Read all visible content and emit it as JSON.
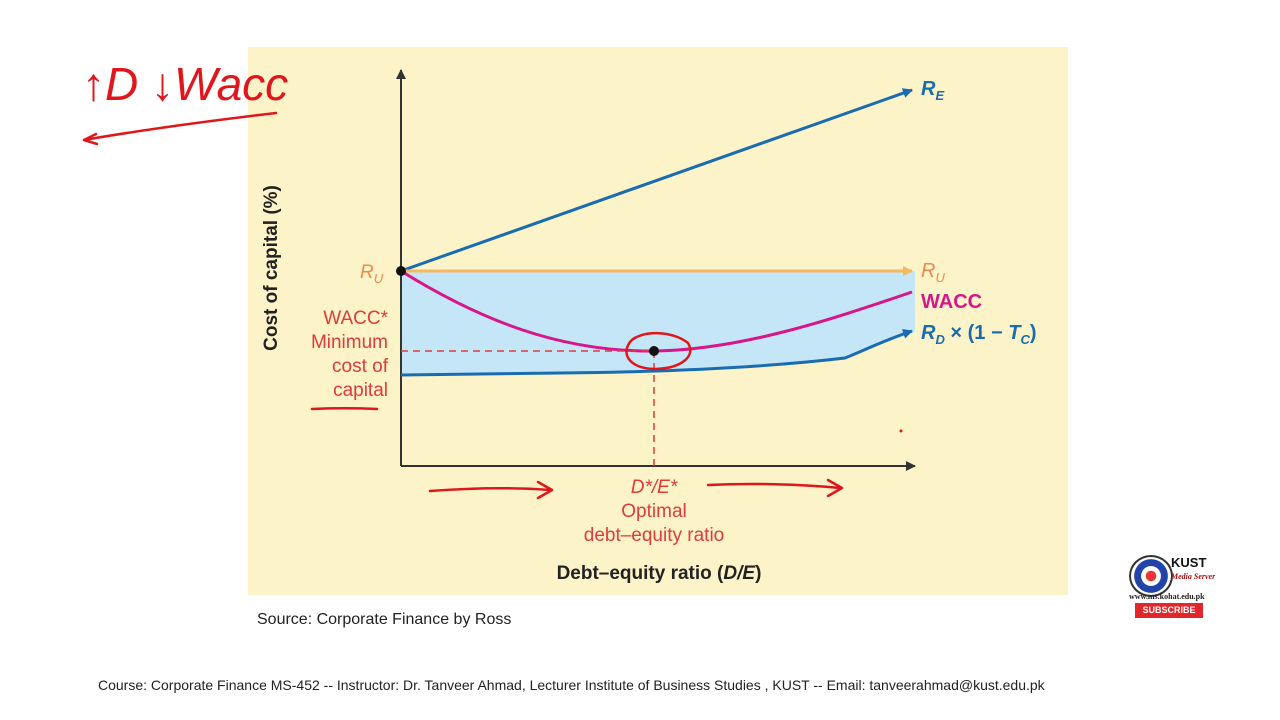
{
  "annotation": {
    "handwritten_note": "↑D ↓Wacc"
  },
  "diagram": {
    "y_axis_label": "Cost of capital (%)",
    "x_axis_label_prefix": "Debt–equity ratio (",
    "x_axis_label_var": "D/E",
    "x_axis_label_suffix": ")",
    "ru_left_main": "R",
    "ru_left_sub": "U",
    "lines": {
      "re": {
        "main": "R",
        "sub": "E",
        "color": "#1a6cb0"
      },
      "ru": {
        "main": "R",
        "sub": "U",
        "color": "#f4b860"
      },
      "wacc": {
        "label": "WACC",
        "color": "#d6168a"
      },
      "rd": {
        "main": "R",
        "sub": "D",
        "times": " × (1 − ",
        "tc_main": "T",
        "tc_sub": "C",
        "close": ")",
        "color": "#1a6cb0"
      }
    },
    "wacc_min_label": {
      "line1": "WACC*",
      "line2": "Minimum",
      "line3": "cost of",
      "line4": "capital"
    },
    "optimal_label": {
      "line1": "D*/E*",
      "line2": "Optimal",
      "line3": "debt–equity ratio"
    },
    "colors": {
      "panel_bg": "#fcf4c8",
      "shade": "#c5e6f7",
      "label_red": "#e03b3b",
      "axis": "#333333",
      "ink_red": "#e0161c"
    }
  },
  "source": "Source: Corporate Finance by Ross",
  "footer": "Course: Corporate Finance MS-452 -- Instructor: Dr. Tanveer Ahmad, Lecturer Institute of Business Studies , KUST -- Email: tanveerahmad@kust.edu.pk",
  "logo": {
    "name": "KUST",
    "subtitle": "Media Server",
    "url": "www.ms.kohat.edu.pk",
    "subscribe": "SUBSCRIBE"
  }
}
